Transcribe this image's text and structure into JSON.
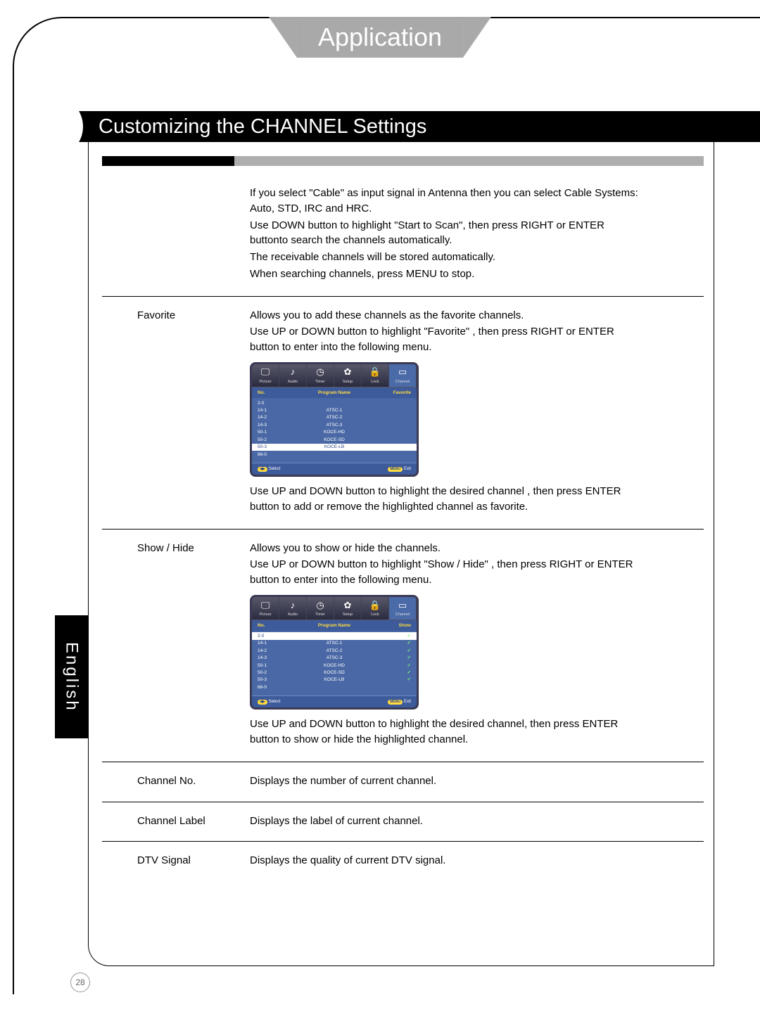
{
  "header": {
    "title": "Application"
  },
  "section": {
    "title": "Customizing the CHANNEL Settings"
  },
  "lang_tab": "English",
  "page_number": "28",
  "intro": {
    "p1": "If you select \"Cable\" as input signal in Antenna then you can select Cable Systems: Auto, STD, IRC and HRC.",
    "p2": "Use DOWN button to highlight  \"Start to Scan\", then press RIGHT or ENTER buttonto search the channels automatically.",
    "p3": "The receivable channels will be stored automatically.",
    "p4": "When searching channels, press MENU to stop."
  },
  "favorite": {
    "label": "Favorite",
    "d1": "Allows you to add these channels as the favorite channels.",
    "d2": "Use UP or DOWN button to highlight  \"Favorite\" , then press RIGHT or ENTER button to enter into the following menu.",
    "d3": "Use UP and DOWN button to highlight the desired channel , then press ENTER button to add or remove the highlighted channel as favorite."
  },
  "showhide": {
    "label": "Show / Hide",
    "d1": "Allows you to show or hide the channels.",
    "d2": "Use UP or DOWN button to highlight  \"Show / Hide\" , then press RIGHT or ENTER button to enter into the following menu.",
    "d3": "Use UP and DOWN button to highlight the desired channel, then press ENTER button to show or hide the highlighted channel."
  },
  "channel_no": {
    "label": "Channel No.",
    "desc": "Displays the number of current channel."
  },
  "channel_label": {
    "label": "Channel Label",
    "desc": "Displays the label of current channel."
  },
  "dtv_signal": {
    "label": "DTV Signal",
    "desc": "Displays the quality of current DTV signal."
  },
  "osd": {
    "tabs": [
      {
        "icon": "🖵",
        "label": "Picture"
      },
      {
        "icon": "♪",
        "label": "Audio"
      },
      {
        "icon": "◷",
        "label": "Timer"
      },
      {
        "icon": "✿",
        "label": "Setup"
      },
      {
        "icon": "🔒",
        "label": "Lock"
      },
      {
        "icon": "▭",
        "label": "Channel"
      }
    ],
    "col_no": "No.",
    "col_name": "Program Name",
    "col_fav": "Favorite",
    "col_show": "Show",
    "rows_fav": [
      {
        "no": "2-0",
        "name": "",
        "mark": ""
      },
      {
        "no": "14-1",
        "name": "ATSC-1",
        "mark": ""
      },
      {
        "no": "14-2",
        "name": "ATSC-2",
        "mark": ""
      },
      {
        "no": "14-3",
        "name": "ATSC-3",
        "mark": ""
      },
      {
        "no": "50-1",
        "name": "KOCE-HD",
        "mark": ""
      },
      {
        "no": "50-2",
        "name": "KOCE-SD",
        "mark": ""
      },
      {
        "no": "50-3",
        "name": "KOCE-LB",
        "mark": "",
        "sel": true
      },
      {
        "no": "66-0",
        "name": "",
        "mark": ""
      }
    ],
    "rows_show": [
      {
        "no": "2-0",
        "name": "",
        "mark": "✓",
        "sel": true
      },
      {
        "no": "14-1",
        "name": "ATSC-1",
        "mark": "✓"
      },
      {
        "no": "14-2",
        "name": "ATSC-2",
        "mark": "✓"
      },
      {
        "no": "14-3",
        "name": "ATSC-3",
        "mark": "✓"
      },
      {
        "no": "50-1",
        "name": "KOCE-HD",
        "mark": "✓"
      },
      {
        "no": "50-2",
        "name": "KOCE-SD",
        "mark": "✓"
      },
      {
        "no": "50-3",
        "name": "KOCE-LB",
        "mark": "✓"
      },
      {
        "no": "66-0",
        "name": "",
        "mark": ""
      }
    ],
    "foot_select": "Select",
    "foot_menu": "MENU",
    "foot_exit": "Exit",
    "colors": {
      "panel_bg": "#4a68a5",
      "header_bg": "#3d5a9a",
      "highlight_text": "#ffda40",
      "selected_bg": "#ffffff",
      "check_color": "#6fff6f"
    }
  }
}
